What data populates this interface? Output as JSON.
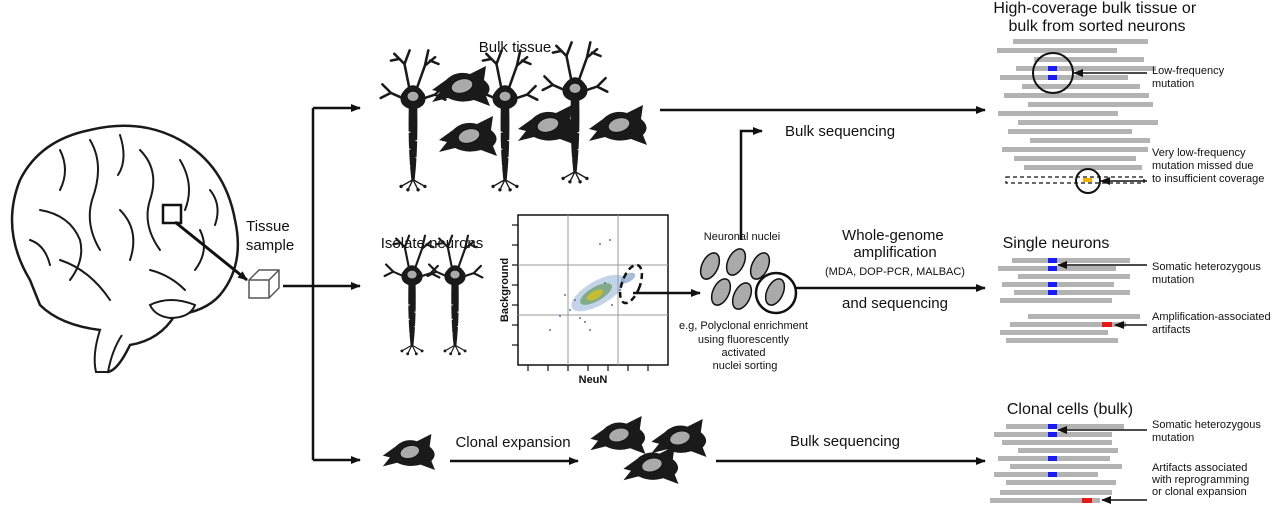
{
  "labels": {
    "tissue_sample": [
      "Tissue",
      "sample"
    ],
    "bulk_tissue": "Bulk tissue",
    "isolate_neurons": "Isolate neurons",
    "facs_ylabel": "Background",
    "facs_xlabel": "NeuN",
    "neuronal_nuclei": "Neuronal nuclei",
    "facs_caption": [
      "e.g, Polyclonal enrichment",
      "using fluorescently",
      "activated",
      "nuclei sorting"
    ],
    "bulk_sequencing_top": "Bulk sequencing",
    "wga_title": [
      "Whole-genome",
      "amplification"
    ],
    "wga_methods": "(MDA, DOP-PCR, MALBAC)",
    "and_sequencing": "and sequencing",
    "clonal_expansion": "Clonal expansion",
    "bulk_sequencing_bottom": "Bulk sequencing"
  },
  "panels": {
    "top": {
      "title": [
        "High-coverage bulk tissue or",
        "bulk from sorted neurons"
      ],
      "annotation_1": [
        "Low-frequency",
        "mutation"
      ],
      "annotation_2": [
        "Very low-frequency",
        "mutation missed due",
        "to insufficient coverage"
      ]
    },
    "middle": {
      "title": "Single neurons",
      "annotation_1": [
        "Somatic heterozygous",
        "mutation"
      ],
      "annotation_2": [
        "Amplification-associated",
        "artifacts"
      ]
    },
    "bottom": {
      "title": "Clonal cells (bulk)",
      "annotation_1": [
        "Somatic heterozygous",
        "mutation"
      ],
      "annotation_2": [
        "Artifacts associated",
        "with reprogramming",
        "or clonal expansion"
      ]
    }
  },
  "colors": {
    "read": "#b3b3b3",
    "mutation": "#1a1aff",
    "artifact": "#e61919",
    "missed_mutation": "#f0b400",
    "cell_body": "#1a1a1a",
    "nucleus": "#aaaaaa"
  }
}
